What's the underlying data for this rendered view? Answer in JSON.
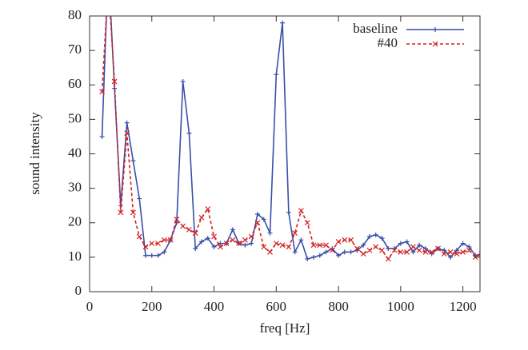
{
  "chart_data": {
    "type": "line",
    "x_label": "freq [Hz]",
    "y_label": "sound intensity",
    "x": [
      40,
      60,
      80,
      100,
      120,
      140,
      160,
      180,
      200,
      220,
      240,
      260,
      280,
      300,
      320,
      340,
      360,
      380,
      400,
      420,
      440,
      460,
      480,
      500,
      520,
      540,
      560,
      580,
      600,
      620,
      640,
      660,
      680,
      700,
      720,
      740,
      760,
      780,
      800,
      820,
      840,
      860,
      880,
      900,
      920,
      940,
      960,
      980,
      1000,
      1020,
      1040,
      1060,
      1080,
      1100,
      1120,
      1140,
      1160,
      1180,
      1200,
      1220,
      1240,
      1260
    ],
    "series": [
      {
        "name": "baseline",
        "color": "#3a4fa8",
        "marker": "plus",
        "dash": false,
        "values": [
          45,
          95,
          59,
          25,
          49,
          38,
          27,
          10.5,
          10.5,
          10.5,
          11.5,
          15,
          20,
          61,
          46,
          12.5,
          14.5,
          15.5,
          13,
          14,
          14,
          18,
          14,
          13.5,
          14,
          22.5,
          21,
          17,
          63,
          78,
          23,
          11.5,
          15,
          9.5,
          10,
          10.5,
          11.5,
          12.5,
          10.5,
          11.5,
          11.5,
          12,
          13.5,
          16,
          16.5,
          15.5,
          12.5,
          12.5,
          14,
          14.5,
          11.5,
          13.5,
          12.5,
          11,
          12.5,
          12,
          10,
          12,
          14,
          13,
          10.5,
          11
        ]
      },
      {
        "name": "#40",
        "color": "#d62020",
        "marker": "cross",
        "dash": true,
        "values": [
          58,
          90,
          61,
          23,
          46,
          23,
          16,
          13,
          14,
          14,
          15,
          15,
          21,
          19,
          18,
          17,
          21.5,
          24,
          16,
          13,
          14,
          15,
          14,
          15,
          16,
          20,
          13,
          11.5,
          14,
          13.5,
          13,
          17,
          23.5,
          20,
          13.5,
          13.5,
          13.5,
          12,
          14.5,
          15,
          15,
          12.5,
          11,
          12,
          13,
          12,
          9.5,
          12,
          11.5,
          11.5,
          13,
          12,
          11.5,
          11.5,
          12.5,
          11,
          11.5,
          11,
          11.5,
          12,
          10,
          11
        ]
      }
    ],
    "xlim": [
      0,
      1255
    ],
    "ylim": [
      0,
      80
    ],
    "xticks": [
      0,
      200,
      400,
      600,
      800,
      1000,
      1200
    ],
    "yticks": [
      0,
      10,
      20,
      30,
      40,
      50,
      60,
      70,
      80
    ],
    "legend": "top-right"
  }
}
